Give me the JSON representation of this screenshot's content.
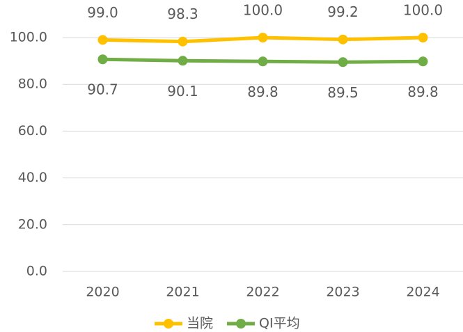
{
  "chart_data": {
    "type": "line",
    "categories": [
      "2020",
      "2021",
      "2022",
      "2023",
      "2024"
    ],
    "series": [
      {
        "name": "当院",
        "color": "#FFC000",
        "values": [
          99.0,
          98.3,
          100.0,
          99.2,
          100.0
        ],
        "value_labels": [
          "99.0",
          "98.3",
          "100.0",
          "99.2",
          "100.0"
        ]
      },
      {
        "name": "QI平均",
        "color": "#70AD47",
        "values": [
          90.7,
          90.1,
          89.8,
          89.5,
          89.8
        ],
        "value_labels": [
          "90.7",
          "90.1",
          "89.8",
          "89.5",
          "89.8"
        ]
      }
    ],
    "ylim": [
      0,
      100
    ],
    "yticks": [
      {
        "value": 0,
        "label": "0.0"
      },
      {
        "value": 20,
        "label": "20.0"
      },
      {
        "value": 40,
        "label": "40.0"
      },
      {
        "value": 60,
        "label": "60.0"
      },
      {
        "value": 80,
        "label": "80.0"
      },
      {
        "value": 100,
        "label": "100.0"
      }
    ],
    "grid": true,
    "legend": "bottom"
  }
}
